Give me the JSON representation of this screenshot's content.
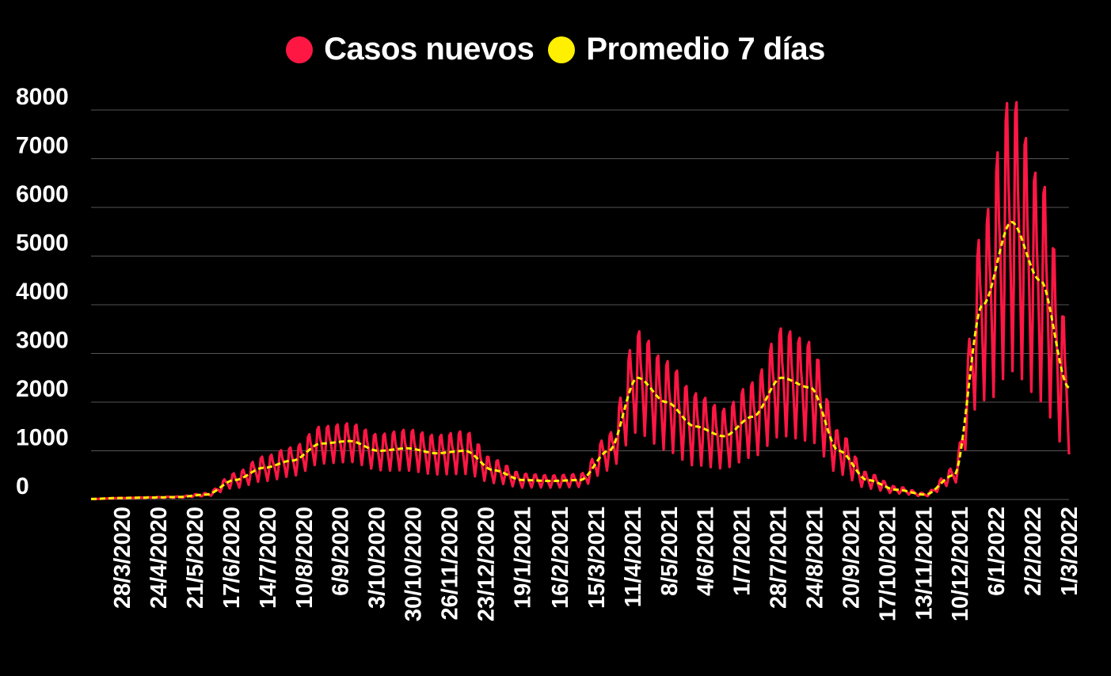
{
  "chart_data": {
    "type": "line",
    "title": "",
    "xlabel": "",
    "ylabel": "",
    "ylim": [
      0,
      8000
    ],
    "y_ticks": [
      "0",
      "1000",
      "2000",
      "3000",
      "4000",
      "5000",
      "6000",
      "7000",
      "8000"
    ],
    "x_ticks": [
      "28/3/2020",
      "24/4/2020",
      "21/5/2020",
      "17/6/2020",
      "14/7/2020",
      "10/8/2020",
      "6/9/2020",
      "3/10/2020",
      "30/10/2020",
      "26/11/2020",
      "23/12/2020",
      "19/1/2021",
      "16/2/2021",
      "15/3/2021",
      "11/4/2021",
      "8/5/2021",
      "4/6/2021",
      "1/7/2021",
      "28/7/2021",
      "24/8/2021",
      "20/9/2021",
      "17/10/2021",
      "13/11/2021",
      "10/12/2021",
      "6/1/2022",
      "2/2/2022",
      "1/3/2022"
    ],
    "grid": true,
    "legend_position": "top-center",
    "colors": {
      "daily": "#ff1744",
      "avg": "#ffef00",
      "grid": "#555555",
      "background": "#000000"
    },
    "x_start": "5/3/2020",
    "x_end": "1/3/2022",
    "series": [
      {
        "name": "Casos nuevos",
        "style": "solid",
        "color": "#ff1744",
        "weekly_amplitude": [
          0.05,
          0.1,
          0.2,
          0.3,
          0.35,
          0.35,
          0.3,
          0.3,
          0.35,
          0.38,
          0.4,
          0.35,
          0.3,
          0.3,
          0.35,
          0.4,
          0.45,
          0.42,
          0.4,
          0.4,
          0.4,
          0.35,
          0.3,
          0.3,
          0.45,
          0.45,
          0.5
        ]
      },
      {
        "name": "Promedio 7 días",
        "style": "dashed",
        "color": "#ffef00",
        "values": [
          10,
          30,
          40,
          50,
          100,
          400,
          650,
          800,
          1150,
          1200,
          1000,
          1050,
          950,
          1000,
          600,
          400,
          380,
          400,
          1000,
          2500,
          2000,
          1500,
          1300,
          1700,
          2500,
          2300,
          1000,
          400,
          200,
          100,
          500,
          4000,
          5700,
          4500,
          2300
        ]
      }
    ]
  }
}
